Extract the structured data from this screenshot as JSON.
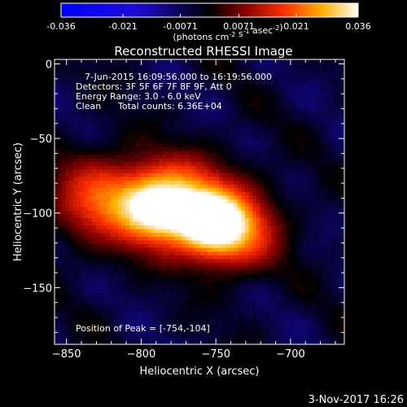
{
  "chart_data": {
    "type": "heatmap",
    "title": "Reconstructed RHESSI Image",
    "xlabel": "Heliocentric X (arcsec)",
    "ylabel": "Heliocentric Y (arcsec)",
    "xlim": [
      -858,
      -664
    ],
    "ylim": [
      -188,
      3
    ],
    "x_ticks": [
      -850,
      -800,
      -750,
      -700
    ],
    "y_ticks": [
      0,
      -50,
      -100,
      -150
    ],
    "colorbar": {
      "range": [
        -0.036,
        0.036
      ],
      "ticks": [
        "-0.036",
        "-0.021",
        "-0.0071",
        "0.0071",
        "0.021",
        "0.036"
      ],
      "label_text": "(photons cm",
      "label_exp1": "-2",
      "label_mid": " s",
      "label_exp2": "-1",
      "label_tail": " asec",
      "label_exp3": "-2",
      "label_end": ")"
    },
    "info": {
      "time_range": "7-Jun-2015 16:09:56.000 to 16:19:56.000",
      "detectors": "Detectors: 3F 5F 6F 7F 8F 9F, Att 0",
      "energy": "Energy Range: 3.0 - 6.0 keV",
      "clean": "Clean",
      "counts": "Total counts: 6.36E+04"
    },
    "peak_label": "Position of Peak = [-754,-104]",
    "peak": [
      -754,
      -104
    ],
    "sources": [
      {
        "x": -754,
        "y": -104,
        "amp": 0.036,
        "sx": 14,
        "sy": 12
      },
      {
        "x": -790,
        "y": -98,
        "amp": 0.03,
        "sx": 17,
        "sy": 13
      },
      {
        "x": -775,
        "y": -82,
        "amp": 0.02,
        "sx": 22,
        "sy": 16
      },
      {
        "x": -828,
        "y": -90,
        "amp": 0.02,
        "sx": 22,
        "sy": 20
      },
      {
        "x": -735,
        "y": -108,
        "amp": 0.018,
        "sx": 18,
        "sy": 20
      },
      {
        "x": -760,
        "y": -118,
        "amp": 0.012,
        "sx": 32,
        "sy": 14
      }
    ],
    "timestamp": "3-Nov-2017 16:26"
  }
}
